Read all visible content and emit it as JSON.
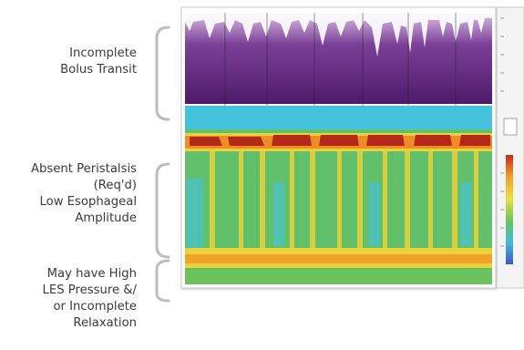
{
  "annotations": [
    {
      "id": "incomplete-bolus-transit",
      "text": "Incomplete\nBolus Transit"
    },
    {
      "id": "absent-peristalsis",
      "text": "Absent Peristalsis\n(Req'd)\nLow Esophageal\nAmplitude"
    },
    {
      "id": "high-les-pressure",
      "text": "May have High\nLES Pressure &/\nor Incomplete\nRelaxation"
    }
  ],
  "colors": {
    "impedance_purple": "#5a1f7a",
    "pressure_green": "#62c06a",
    "pressure_cyan": "#45c3dc",
    "pressure_yellow": "#ead23a",
    "pressure_red": "#c0301e",
    "bracket_gray": "#b9b9b9"
  },
  "swallow_count": 10
}
